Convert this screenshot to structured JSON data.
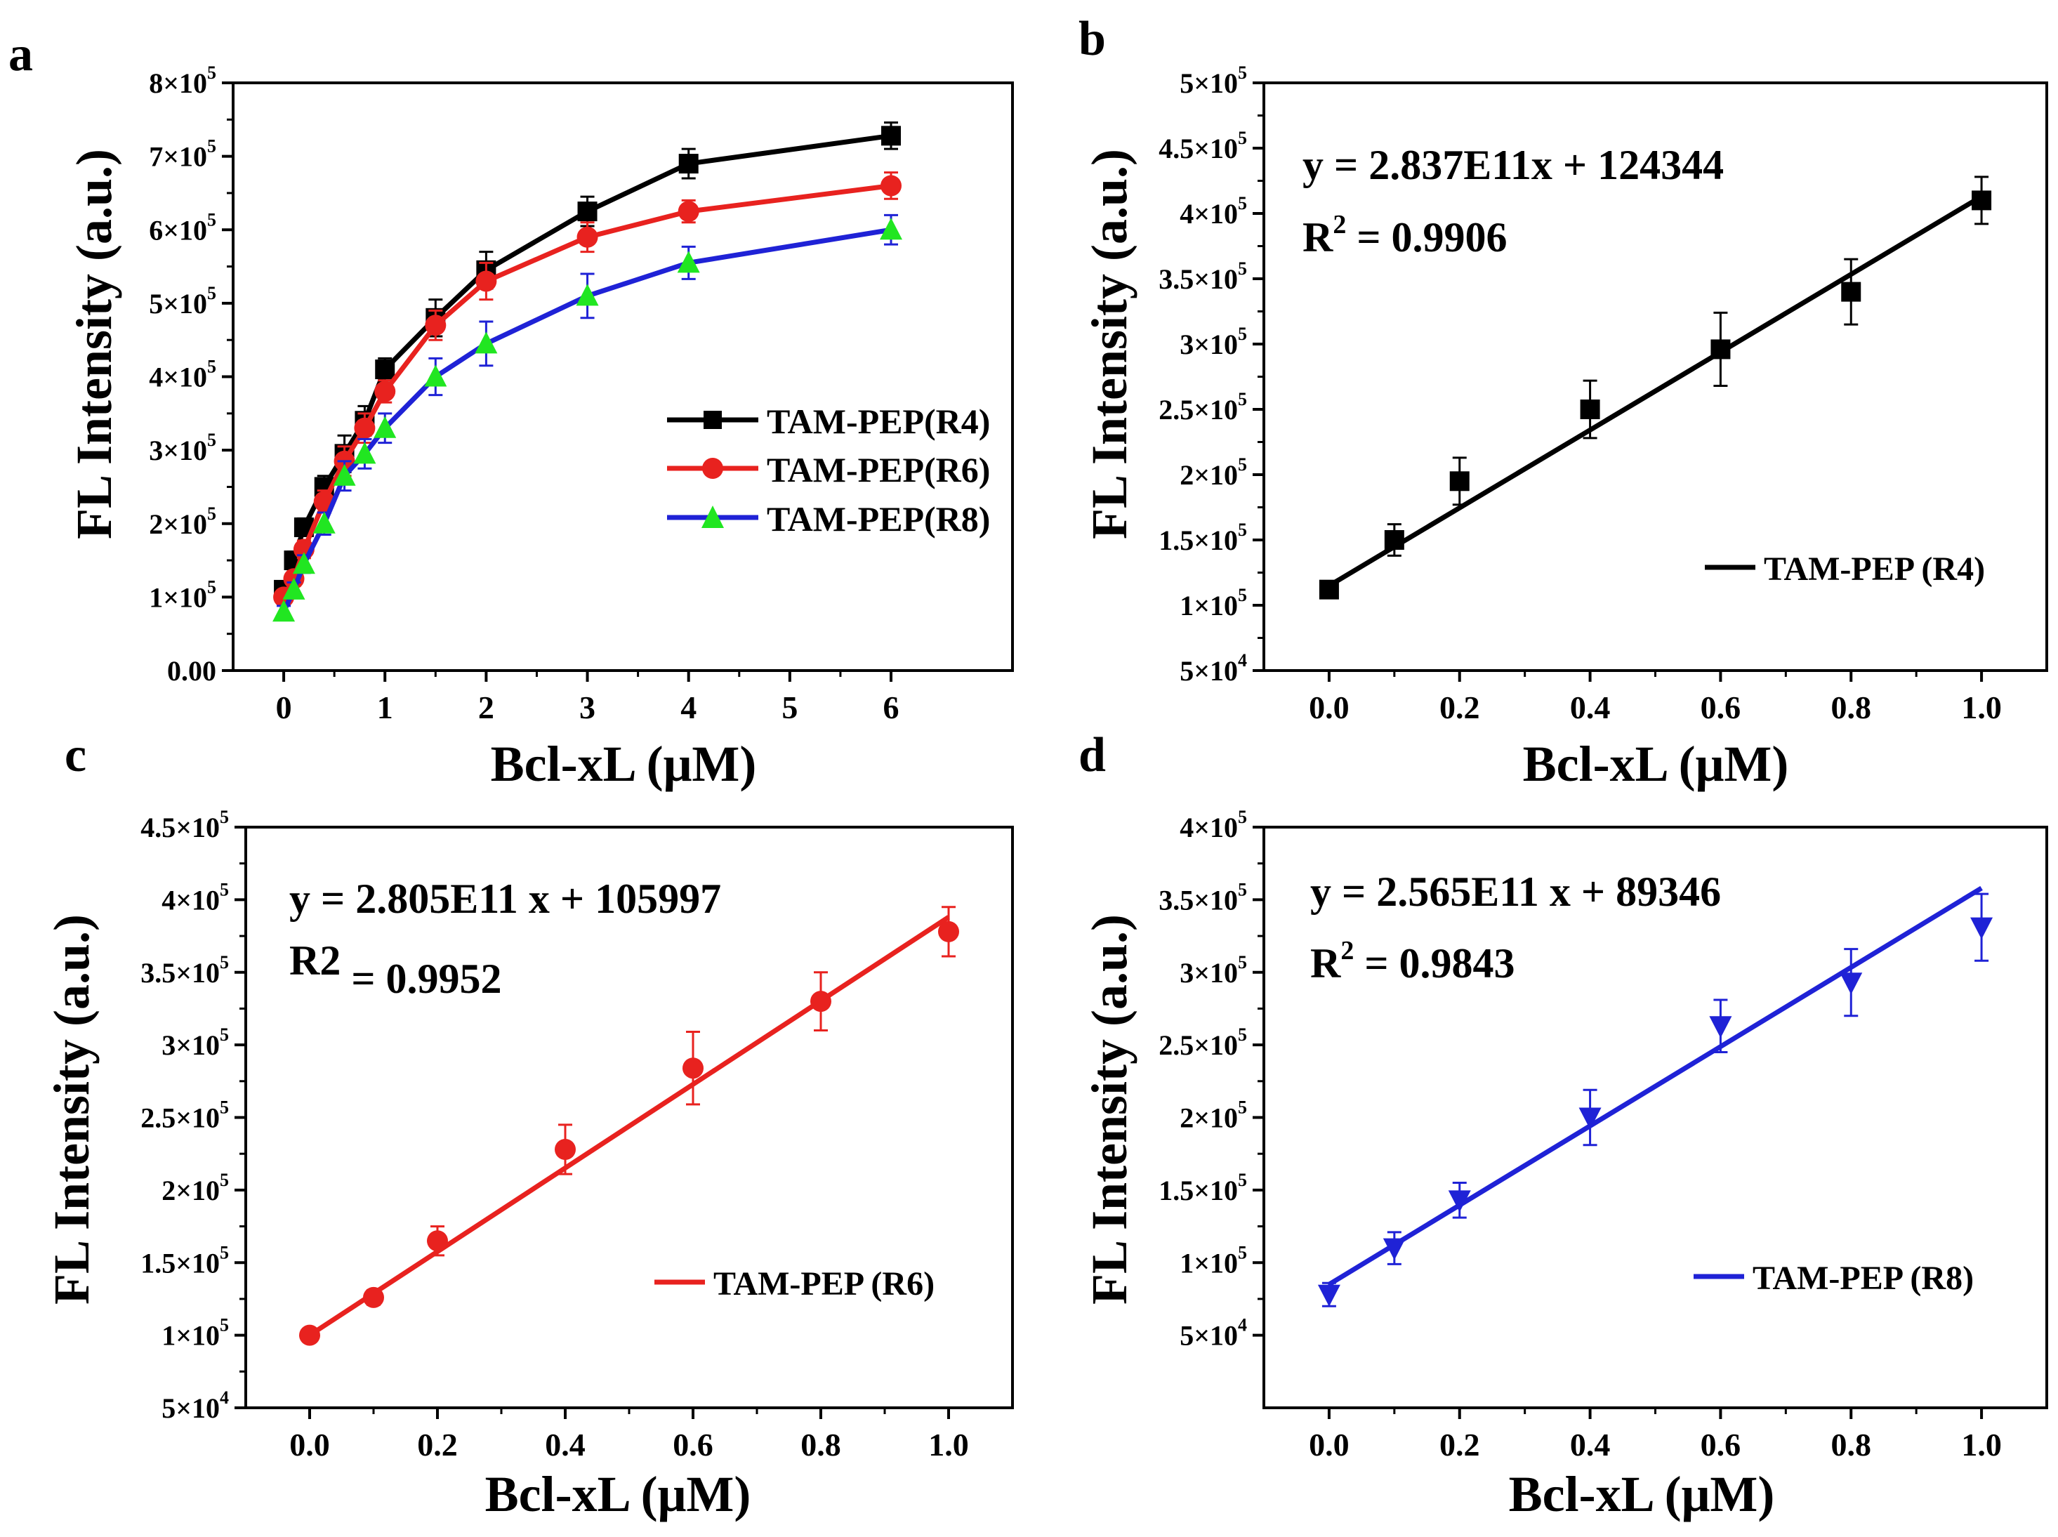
{
  "figure": {
    "colors": {
      "black": "#000000",
      "red": "#e8221f",
      "blue": "#1f22d6",
      "green": "#21e621"
    }
  },
  "chart_data": [
    {
      "panel": "a",
      "type": "line",
      "xlabel": "Bcl-xL (μM)",
      "ylabel": "FL Intensity (a.u.)",
      "xlim": [
        -0.5,
        7.2
      ],
      "ylim": [
        0,
        800000
      ],
      "xticks": [
        0,
        1,
        2,
        3,
        4,
        5,
        6
      ],
      "xtick_labels": [
        "0",
        "1",
        "2",
        "3",
        "4",
        "5",
        "6"
      ],
      "yticks": [
        {
          "value": 0,
          "base": "0.00",
          "exp": ""
        },
        {
          "value": 100000,
          "base": "1×10",
          "exp": "5"
        },
        {
          "value": 200000,
          "base": "2×10",
          "exp": "5"
        },
        {
          "value": 300000,
          "base": "3×10",
          "exp": "5"
        },
        {
          "value": 400000,
          "base": "4×10",
          "exp": "5"
        },
        {
          "value": 500000,
          "base": "5×10",
          "exp": "5"
        },
        {
          "value": 600000,
          "base": "6×10",
          "exp": "5"
        },
        {
          "value": 700000,
          "base": "7×10",
          "exp": "5"
        },
        {
          "value": 800000,
          "base": "8×10",
          "exp": "5"
        }
      ],
      "legend_position": "center-right",
      "series": [
        {
          "name": "TAM-PEP(R4)",
          "color": "#000000",
          "marker": "square",
          "x": [
            0,
            0.1,
            0.2,
            0.4,
            0.6,
            0.8,
            1,
            1.5,
            2,
            3,
            4,
            6
          ],
          "y": [
            110000,
            150000,
            195000,
            250000,
            295000,
            340000,
            410000,
            480000,
            545000,
            625000,
            690000,
            728000
          ],
          "err": [
            10000,
            12000,
            12000,
            15000,
            25000,
            20000,
            15000,
            25000,
            25000,
            20000,
            20000,
            18000
          ]
        },
        {
          "name": "TAM-PEP(R6)",
          "color": "#e8221f",
          "marker": "circle",
          "x": [
            0,
            0.1,
            0.2,
            0.4,
            0.6,
            0.8,
            1,
            1.5,
            2,
            3,
            4,
            6
          ],
          "y": [
            100000,
            125000,
            165000,
            230000,
            285000,
            330000,
            380000,
            470000,
            530000,
            590000,
            625000,
            660000
          ],
          "err": [
            8000,
            10000,
            12000,
            15000,
            20000,
            20000,
            15000,
            20000,
            25000,
            20000,
            15000,
            18000
          ]
        },
        {
          "name": "TAM-PEP(R8)",
          "color": "#1f22d6",
          "marker": "triangle-up",
          "marker_color": "#21e621",
          "x": [
            0,
            0.1,
            0.2,
            0.4,
            0.6,
            0.8,
            1,
            1.5,
            2,
            3,
            4,
            6
          ],
          "y": [
            80000,
            110000,
            145000,
            200000,
            265000,
            295000,
            330000,
            400000,
            445000,
            510000,
            555000,
            600000
          ],
          "err": [
            8000,
            10000,
            12000,
            15000,
            20000,
            20000,
            20000,
            25000,
            30000,
            30000,
            22000,
            20000
          ]
        }
      ]
    },
    {
      "panel": "b",
      "type": "scatter",
      "xlabel": "Bcl-xL (μM)",
      "ylabel": "FL Intensity (a.u.)",
      "xlim": [
        -0.1,
        1.1
      ],
      "ylim": [
        50000,
        500000
      ],
      "xticks": [
        0,
        0.2,
        0.4,
        0.6,
        0.8,
        1.0
      ],
      "xtick_labels": [
        "0.0",
        "0.2",
        "0.4",
        "0.6",
        "0.8",
        "1.0"
      ],
      "yticks": [
        {
          "value": 50000,
          "base": "5×10",
          "exp": "4"
        },
        {
          "value": 100000,
          "base": "1×10",
          "exp": "5"
        },
        {
          "value": 150000,
          "base": "1.5×10",
          "exp": "5"
        },
        {
          "value": 200000,
          "base": "2×10",
          "exp": "5"
        },
        {
          "value": 250000,
          "base": "2.5×10",
          "exp": "5"
        },
        {
          "value": 300000,
          "base": "3×10",
          "exp": "5"
        },
        {
          "value": 350000,
          "base": "3.5×10",
          "exp": "5"
        },
        {
          "value": 400000,
          "base": "4×10",
          "exp": "5"
        },
        {
          "value": 450000,
          "base": "4.5×10",
          "exp": "5"
        },
        {
          "value": 500000,
          "base": "5×10",
          "exp": "5"
        }
      ],
      "equation": "y = 2.837E11x + 124344",
      "r2_label": "R",
      "r2_sup": "2",
      "r2_value": " = 0.9906",
      "fit": {
        "x": [
          0,
          1.0
        ],
        "y": [
          115000,
          413000
        ]
      },
      "legend_position": "bottom-right",
      "series": [
        {
          "name": "TAM-PEP (R4)",
          "color": "#000000",
          "marker": "square",
          "x": [
            0,
            0.1,
            0.2,
            0.4,
            0.6,
            0.8,
            1.0
          ],
          "y": [
            112000,
            150000,
            195000,
            250000,
            296000,
            340000,
            410000
          ],
          "err": [
            6000,
            12000,
            18000,
            22000,
            28000,
            25000,
            18000
          ]
        }
      ]
    },
    {
      "panel": "c",
      "type": "scatter",
      "xlabel": "Bcl-xL (μM)",
      "ylabel": "FL Intensity (a.u.)",
      "xlim": [
        -0.1,
        1.1
      ],
      "ylim": [
        50000,
        450000
      ],
      "xticks": [
        0,
        0.2,
        0.4,
        0.6,
        0.8,
        1.0
      ],
      "xtick_labels": [
        "0.0",
        "0.2",
        "0.4",
        "0.6",
        "0.8",
        "1.0"
      ],
      "yticks": [
        {
          "value": 50000,
          "base": "5×10",
          "exp": "4"
        },
        {
          "value": 100000,
          "base": "1×10",
          "exp": "5"
        },
        {
          "value": 150000,
          "base": "1.5×10",
          "exp": "5"
        },
        {
          "value": 200000,
          "base": "2×10",
          "exp": "5"
        },
        {
          "value": 250000,
          "base": "2.5×10",
          "exp": "5"
        },
        {
          "value": 300000,
          "base": "3×10",
          "exp": "5"
        },
        {
          "value": 350000,
          "base": "3.5×10",
          "exp": "5"
        },
        {
          "value": 400000,
          "base": "4×10",
          "exp": "5"
        },
        {
          "value": 450000,
          "base": "4.5×10",
          "exp": "5"
        }
      ],
      "equation": "y = 2.805E11 x  + 105997",
      "r2_label": "R2",
      "r2_sup": "",
      "r2_value": " = 0.9952",
      "fit": {
        "x": [
          0,
          1.0
        ],
        "y": [
          100000,
          388000
        ]
      },
      "legend_position": "bottom-right",
      "series": [
        {
          "name": "TAM-PEP (R6)",
          "color": "#e8221f",
          "marker": "circle",
          "x": [
            0,
            0.1,
            0.2,
            0.4,
            0.6,
            0.8,
            1.0
          ],
          "y": [
            100000,
            126000,
            165000,
            228000,
            284000,
            330000,
            378000
          ],
          "err": [
            4000,
            5000,
            10000,
            17000,
            25000,
            20000,
            17000
          ]
        }
      ]
    },
    {
      "panel": "d",
      "type": "scatter",
      "xlabel": "Bcl-xL (μM)",
      "ylabel": "FL Intensity (a.u.)",
      "xlim": [
        -0.1,
        1.1
      ],
      "ylim": [
        0,
        400000
      ],
      "xticks": [
        0,
        0.2,
        0.4,
        0.6,
        0.8,
        1.0
      ],
      "xtick_labels": [
        "0.0",
        "0.2",
        "0.4",
        "0.6",
        "0.8",
        "1.0"
      ],
      "yticks": [
        {
          "value": 50000,
          "base": "5×10",
          "exp": "4"
        },
        {
          "value": 100000,
          "base": "1×10",
          "exp": "5"
        },
        {
          "value": 150000,
          "base": "1.5×10",
          "exp": "5"
        },
        {
          "value": 200000,
          "base": "2×10",
          "exp": "5"
        },
        {
          "value": 250000,
          "base": "2.5×10",
          "exp": "5"
        },
        {
          "value": 300000,
          "base": "3×10",
          "exp": "5"
        },
        {
          "value": 350000,
          "base": "3.5×10",
          "exp": "5"
        },
        {
          "value": 400000,
          "base": "4×10",
          "exp": "5"
        }
      ],
      "equation": "y = 2.565E11 x + 89346",
      "r2_label": "R",
      "r2_sup": "2",
      "r2_value": " = 0.9843",
      "fit": {
        "x": [
          0,
          1.0
        ],
        "y": [
          85000,
          358000
        ]
      },
      "legend_position": "bottom-right",
      "series": [
        {
          "name": "TAM-PEP (R8)",
          "color": "#1f22d6",
          "marker": "triangle-down",
          "x": [
            0,
            0.1,
            0.2,
            0.4,
            0.6,
            0.8,
            1.0
          ],
          "y": [
            78000,
            110000,
            143000,
            200000,
            263000,
            293000,
            331000
          ],
          "err": [
            8000,
            11000,
            12000,
            19000,
            18000,
            23000,
            23000
          ]
        }
      ]
    }
  ]
}
